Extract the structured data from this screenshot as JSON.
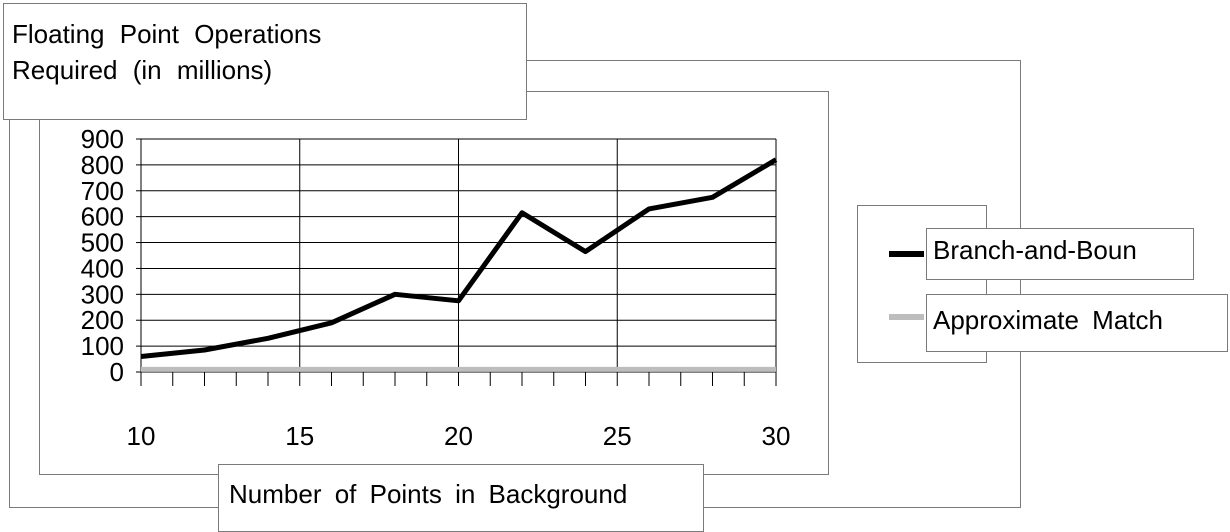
{
  "chart_data": {
    "type": "line",
    "title": [
      "Floating Point Operations",
      "Required (in millions)"
    ],
    "xlabel": "Number of Points in Background",
    "ylabel": "",
    "xlim": [
      10,
      30
    ],
    "ylim": [
      0,
      900
    ],
    "x_ticks": [
      "10",
      "15",
      "20",
      "25",
      "30"
    ],
    "y_ticks": [
      "0",
      "100",
      "200",
      "300",
      "400",
      "500",
      "600",
      "700",
      "800",
      "900"
    ],
    "grid": true,
    "legend_position": "right",
    "series": [
      {
        "name": "Branch-and-Boun",
        "color": "#000000",
        "x": [
          10,
          12,
          14,
          16,
          18,
          20,
          22,
          24,
          26,
          28,
          30
        ],
        "values": [
          60,
          85,
          130,
          190,
          300,
          275,
          615,
          465,
          630,
          675,
          820
        ]
      },
      {
        "name": "Approximate  Match",
        "color": "#bdbdbd",
        "x": [
          10,
          12,
          14,
          16,
          18,
          20,
          22,
          24,
          26,
          28,
          30
        ],
        "values": [
          10,
          10,
          10,
          10,
          10,
          10,
          10,
          10,
          10,
          10,
          10
        ]
      }
    ]
  }
}
